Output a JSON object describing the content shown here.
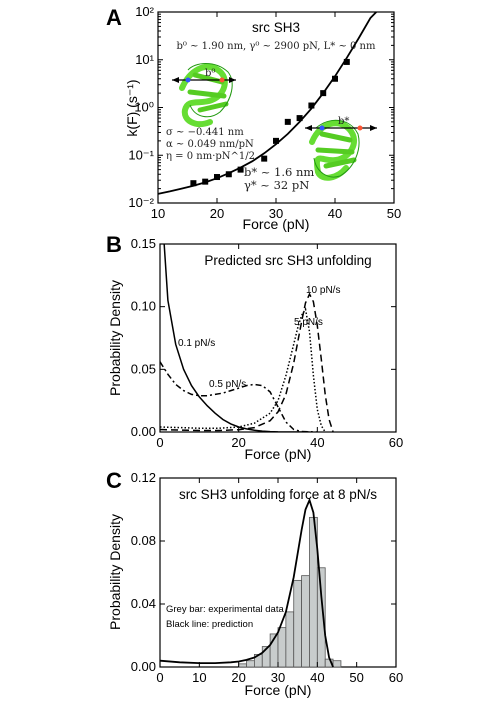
{
  "chart_data": [
    {
      "panel": "A",
      "type": "scatter",
      "title": "src SH3",
      "subtitle_b0": "b⁰ ~ 1.90 nm, γ⁰ ~ 2900 pN, L* ~ 0 nm",
      "params_left": [
        "σ ~ −0.441 nm",
        "α ~ 0.049 nm/pN",
        "η = 0 nm·pN^1/2"
      ],
      "params_right": [
        "b* ~ 1.6 nm",
        "γ* ~ 32 pN"
      ],
      "inset_label_top": "b⁰",
      "inset_label_bottom": "b*",
      "xlabel": "Force (pN)",
      "ylabel": "k(F) (s⁻¹)",
      "xlim": [
        10,
        50
      ],
      "ylim": [
        0.01,
        100
      ],
      "yscale": "log",
      "xticks": [
        10,
        20,
        30,
        40,
        50
      ],
      "yticks": [
        {
          "v": 0.01,
          "label": "10⁻²"
        },
        {
          "v": 0.1,
          "label": "10⁻¹"
        },
        {
          "v": 1,
          "label": "10⁰"
        },
        {
          "v": 10,
          "label": "10¹"
        },
        {
          "v": 100,
          "label": "10²"
        }
      ],
      "points": [
        {
          "x": 16,
          "y": 0.026
        },
        {
          "x": 18,
          "y": 0.028
        },
        {
          "x": 20,
          "y": 0.035
        },
        {
          "x": 22,
          "y": 0.04
        },
        {
          "x": 24,
          "y": 0.05
        },
        {
          "x": 28,
          "y": 0.085
        },
        {
          "x": 30,
          "y": 0.2
        },
        {
          "x": 32,
          "y": 0.5
        },
        {
          "x": 34,
          "y": 0.6
        },
        {
          "x": 36,
          "y": 1.1
        },
        {
          "x": 38,
          "y": 2.0
        },
        {
          "x": 40,
          "y": 4.0
        },
        {
          "x": 42,
          "y": 9.0
        }
      ],
      "fit": {
        "x": [
          10,
          12,
          14,
          16,
          18,
          20,
          22,
          24,
          26,
          28,
          30,
          32,
          34,
          36,
          38,
          40,
          42,
          44,
          46,
          47
        ],
        "y": [
          0.0155,
          0.0175,
          0.02,
          0.023,
          0.027,
          0.033,
          0.042,
          0.055,
          0.075,
          0.11,
          0.17,
          0.28,
          0.5,
          0.95,
          2.0,
          4.5,
          11,
          28,
          75,
          100
        ]
      }
    },
    {
      "panel": "B",
      "type": "line",
      "title": "Predicted src SH3 unfolding",
      "xlabel": "Force (pN)",
      "ylabel": "Probability Density",
      "xlim": [
        0,
        60
      ],
      "ylim": [
        0,
        0.15
      ],
      "xticks": [
        0,
        20,
        40,
        60
      ],
      "yticks": [
        0.0,
        0.05,
        0.1,
        0.15
      ],
      "ytick_labels": [
        "0.00",
        "0.05",
        "0.10",
        "0.15"
      ],
      "series": [
        {
          "name": "0.1 pN/s",
          "style": "solid",
          "x": [
            0,
            2,
            4,
            6,
            8,
            10,
            12,
            14,
            16,
            18,
            20,
            22,
            24,
            26,
            28,
            30,
            34,
            38
          ],
          "y": [
            0.2,
            0.105,
            0.07,
            0.05,
            0.037,
            0.028,
            0.021,
            0.015,
            0.01,
            0.0065,
            0.004,
            0.0025,
            0.0014,
            0.0007,
            0.0003,
            0.0001,
            2e-05,
            0.0
          ]
        },
        {
          "name": "0.5 pN/s",
          "style": "dashdot",
          "x": [
            0,
            2,
            4,
            6,
            8,
            10,
            12,
            14,
            16,
            18,
            20,
            22,
            24,
            26,
            28,
            30,
            32,
            34,
            36,
            40
          ],
          "y": [
            0.056,
            0.046,
            0.038,
            0.033,
            0.03,
            0.029,
            0.029,
            0.03,
            0.031,
            0.033,
            0.035,
            0.037,
            0.038,
            0.037,
            0.032,
            0.02,
            0.008,
            0.002,
            0.0004,
            0.0
          ]
        },
        {
          "name": "5 pN/s",
          "style": "dotted",
          "x": [
            0,
            5,
            10,
            15,
            20,
            24,
            28,
            30,
            32,
            34,
            35,
            36,
            37,
            38,
            39,
            40,
            41,
            42
          ],
          "y": [
            0.004,
            0.0035,
            0.003,
            0.003,
            0.004,
            0.007,
            0.015,
            0.025,
            0.045,
            0.07,
            0.083,
            0.093,
            0.098,
            0.08,
            0.045,
            0.018,
            0.005,
            0.0
          ]
        },
        {
          "name": "10 pN/s",
          "style": "dashed",
          "x": [
            0,
            5,
            10,
            15,
            20,
            24,
            28,
            30,
            32,
            34,
            36,
            37,
            38,
            39,
            40,
            41,
            42,
            43,
            44
          ],
          "y": [
            0.002,
            0.0015,
            0.0012,
            0.0012,
            0.0018,
            0.0035,
            0.009,
            0.016,
            0.03,
            0.055,
            0.088,
            0.103,
            0.11,
            0.104,
            0.085,
            0.058,
            0.03,
            0.01,
            0.0
          ]
        }
      ]
    },
    {
      "panel": "C",
      "type": "bar",
      "title": "src SH3 unfolding force at 8 pN/s",
      "xlabel": "Force (pN)",
      "ylabel": "Probability Density",
      "xlim": [
        0,
        60
      ],
      "ylim": [
        0,
        0.12
      ],
      "xticks": [
        0,
        10,
        20,
        30,
        40,
        50,
        60
      ],
      "yticks": [
        0.0,
        0.04,
        0.08,
        0.12
      ],
      "ytick_labels": [
        "0.00",
        "0.04",
        "0.08",
        "0.12"
      ],
      "legend": [
        "Grey bar: experimental data",
        "Black line: prediction"
      ],
      "bars": {
        "bin_width": 2,
        "left_edges": [
          20,
          22,
          24,
          26,
          28,
          30,
          32,
          34,
          36,
          38,
          40,
          42,
          44
        ],
        "values": [
          0.002,
          0.004,
          0.008,
          0.013,
          0.021,
          0.025,
          0.035,
          0.055,
          0.058,
          0.095,
          0.063,
          0.005,
          0.004
        ]
      },
      "line": {
        "x": [
          0,
          5,
          10,
          14,
          18,
          20,
          22,
          24,
          26,
          28,
          30,
          32,
          34,
          36,
          37,
          38,
          39,
          40,
          41,
          42,
          43,
          44
        ],
        "y": [
          0.004,
          0.003,
          0.0025,
          0.0025,
          0.003,
          0.0035,
          0.0045,
          0.006,
          0.009,
          0.014,
          0.022,
          0.035,
          0.057,
          0.087,
          0.1,
          0.106,
          0.098,
          0.075,
          0.045,
          0.02,
          0.006,
          0.0
        ]
      }
    }
  ],
  "panel_letters": [
    "A",
    "B",
    "C"
  ],
  "colors": {
    "bar_fill": "#c8cccc",
    "bar_stroke": "#555555",
    "protein": "#66dd33",
    "axis": "#000000"
  }
}
